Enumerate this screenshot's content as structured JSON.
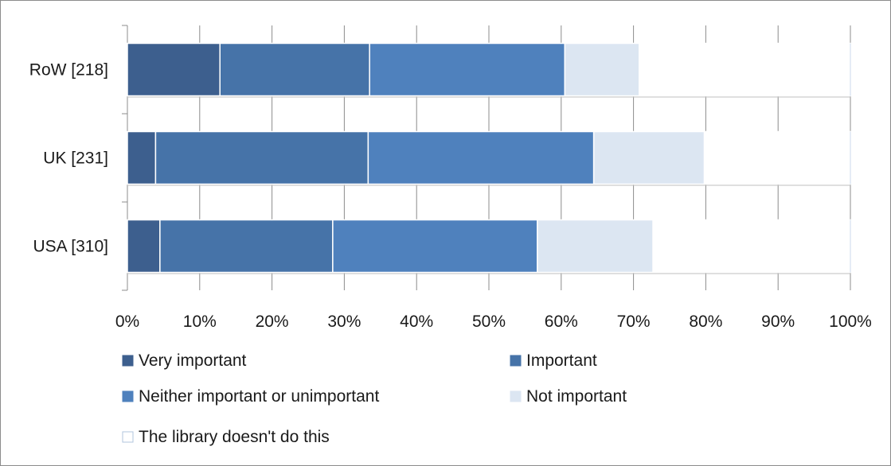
{
  "chart_data": {
    "type": "bar",
    "orientation": "horizontal",
    "stacked": true,
    "normalized": true,
    "categories": [
      "RoW [218]",
      "UK [231]",
      "USA [310]"
    ],
    "series": [
      {
        "name": "Very important",
        "values": [
          12.8,
          3.9,
          4.5
        ],
        "color": "#3d5f8e"
      },
      {
        "name": "Important",
        "values": [
          20.7,
          29.4,
          23.9
        ],
        "color": "#4673a8"
      },
      {
        "name": "Neither important or unimportant",
        "values": [
          27.0,
          31.2,
          28.3
        ],
        "color": "#4f81bd"
      },
      {
        "name": "Not important",
        "values": [
          10.3,
          15.3,
          16.0
        ],
        "color": "#dce6f2"
      },
      {
        "name": "The library doesn't do this",
        "values": [
          29.2,
          20.2,
          27.3
        ],
        "color": "#ffffff"
      }
    ],
    "x_ticks": [
      "0%",
      "10%",
      "20%",
      "30%",
      "40%",
      "50%",
      "60%",
      "70%",
      "80%",
      "90%",
      "100%"
    ],
    "xlim": [
      0,
      100
    ],
    "grid": true,
    "legend": "bottom"
  }
}
